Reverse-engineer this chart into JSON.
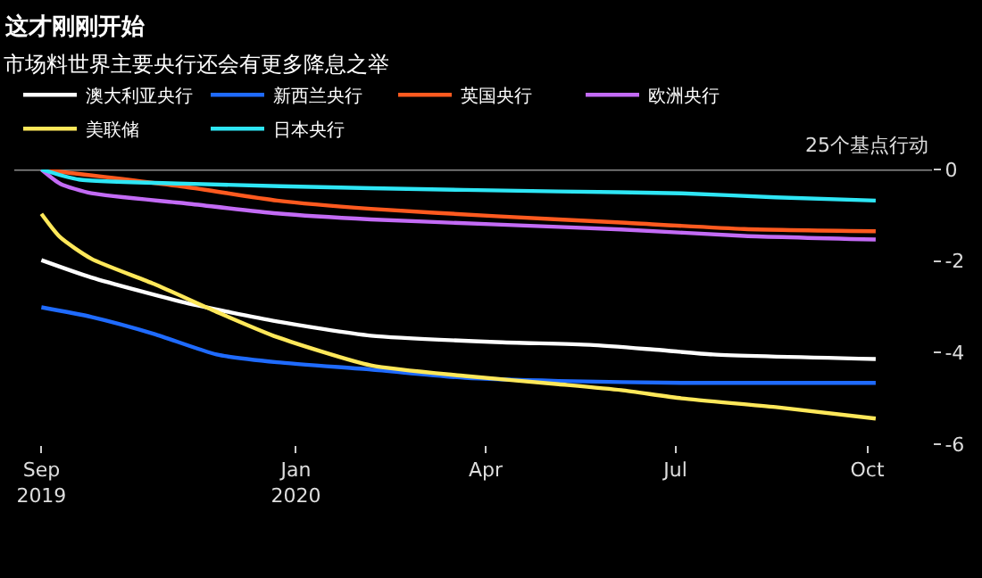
{
  "chart_data": {
    "type": "line",
    "title": "这才刚刚开始",
    "subtitle": "市场料世界主要央行还会有更多降息之举",
    "ylabel": "25个基点行动",
    "series": [
      {
        "name": "澳大利亚央行",
        "color": "#ffffff",
        "x": [
          "2019-09-01",
          "2019-09-25",
          "2019-11-09",
          "2019-12-23",
          "2020-02-06",
          "2020-04-06",
          "2020-05-21",
          "2020-06-20",
          "2020-07-19",
          "2020-10-05"
        ],
        "values": [
          -1.98,
          -2.36,
          -2.91,
          -3.32,
          -3.63,
          -3.77,
          -3.83,
          -3.93,
          -4.04,
          -4.14
        ]
      },
      {
        "name": "新西兰央行",
        "color": "#1f6bff",
        "x": [
          "2019-09-01",
          "2019-09-25",
          "2019-10-25",
          "2019-11-24",
          "2019-12-23",
          "2020-02-06",
          "2020-03-22",
          "2020-05-06",
          "2020-07-04",
          "2020-10-05"
        ],
        "values": [
          -3.01,
          -3.22,
          -3.59,
          -4.04,
          -4.21,
          -4.37,
          -4.55,
          -4.62,
          -4.66,
          -4.66
        ]
      },
      {
        "name": "英国央行",
        "color": "#ff5a1f",
        "x": [
          "2019-09-01",
          "2019-11-09",
          "2019-12-23",
          "2020-02-06",
          "2020-04-06",
          "2020-06-05",
          "2020-08-03",
          "2020-10-05"
        ],
        "values": [
          0,
          -0.38,
          -0.68,
          -0.86,
          -1.02,
          -1.16,
          -1.3,
          -1.35
        ]
      },
      {
        "name": "欧洲央行",
        "color": "#c36bf5",
        "x": [
          "2019-09-01",
          "2019-09-10",
          "2019-09-25",
          "2019-11-09",
          "2019-12-23",
          "2020-02-06",
          "2020-04-06",
          "2020-06-05",
          "2020-08-03",
          "2020-10-05"
        ],
        "values": [
          0,
          -0.31,
          -0.52,
          -0.74,
          -0.96,
          -1.09,
          -1.2,
          -1.31,
          -1.45,
          -1.53
        ]
      },
      {
        "name": "美联储",
        "color": "#ffe85a",
        "x": [
          "2019-09-01",
          "2019-09-10",
          "2019-09-25",
          "2019-10-25",
          "2019-11-24",
          "2019-12-23",
          "2020-02-06",
          "2020-03-22",
          "2020-05-06",
          "2020-06-05",
          "2020-07-04",
          "2020-08-18",
          "2020-10-05"
        ],
        "values": [
          -0.97,
          -1.48,
          -1.95,
          -2.5,
          -3.11,
          -3.66,
          -4.28,
          -4.51,
          -4.69,
          -4.82,
          -5.0,
          -5.19,
          -5.44
        ]
      },
      {
        "name": "日本央行",
        "color": "#2ee6f5",
        "x": [
          "2019-09-01",
          "2019-09-19",
          "2019-11-09",
          "2020-02-06",
          "2020-05-06",
          "2020-07-04",
          "2020-08-18",
          "2020-10-05"
        ],
        "values": [
          0,
          -0.22,
          -0.31,
          -0.41,
          -0.48,
          -0.52,
          -0.61,
          -0.68
        ]
      }
    ],
    "xlim": [
      "2019-08-19",
      "2020-11-01"
    ],
    "xticks": [
      {
        "value": "2019-09-01",
        "label": "Sep\n2019"
      },
      {
        "value": "2020-01-01",
        "label": "Jan\n2020"
      },
      {
        "value": "2020-04-01",
        "label": "Apr"
      },
      {
        "value": "2020-07-01",
        "label": "Jul"
      },
      {
        "value": "2020-10-01",
        "label": "Oct"
      }
    ],
    "ylim": [
      -6,
      0
    ],
    "yticks": [
      0,
      -2,
      -4,
      -6
    ],
    "ref_lines": [
      {
        "axis": "y",
        "value": 0,
        "color": "#8c8c8c"
      }
    ],
    "grid": false,
    "legend": "top left",
    "marker": "none",
    "line_style": "solid"
  }
}
